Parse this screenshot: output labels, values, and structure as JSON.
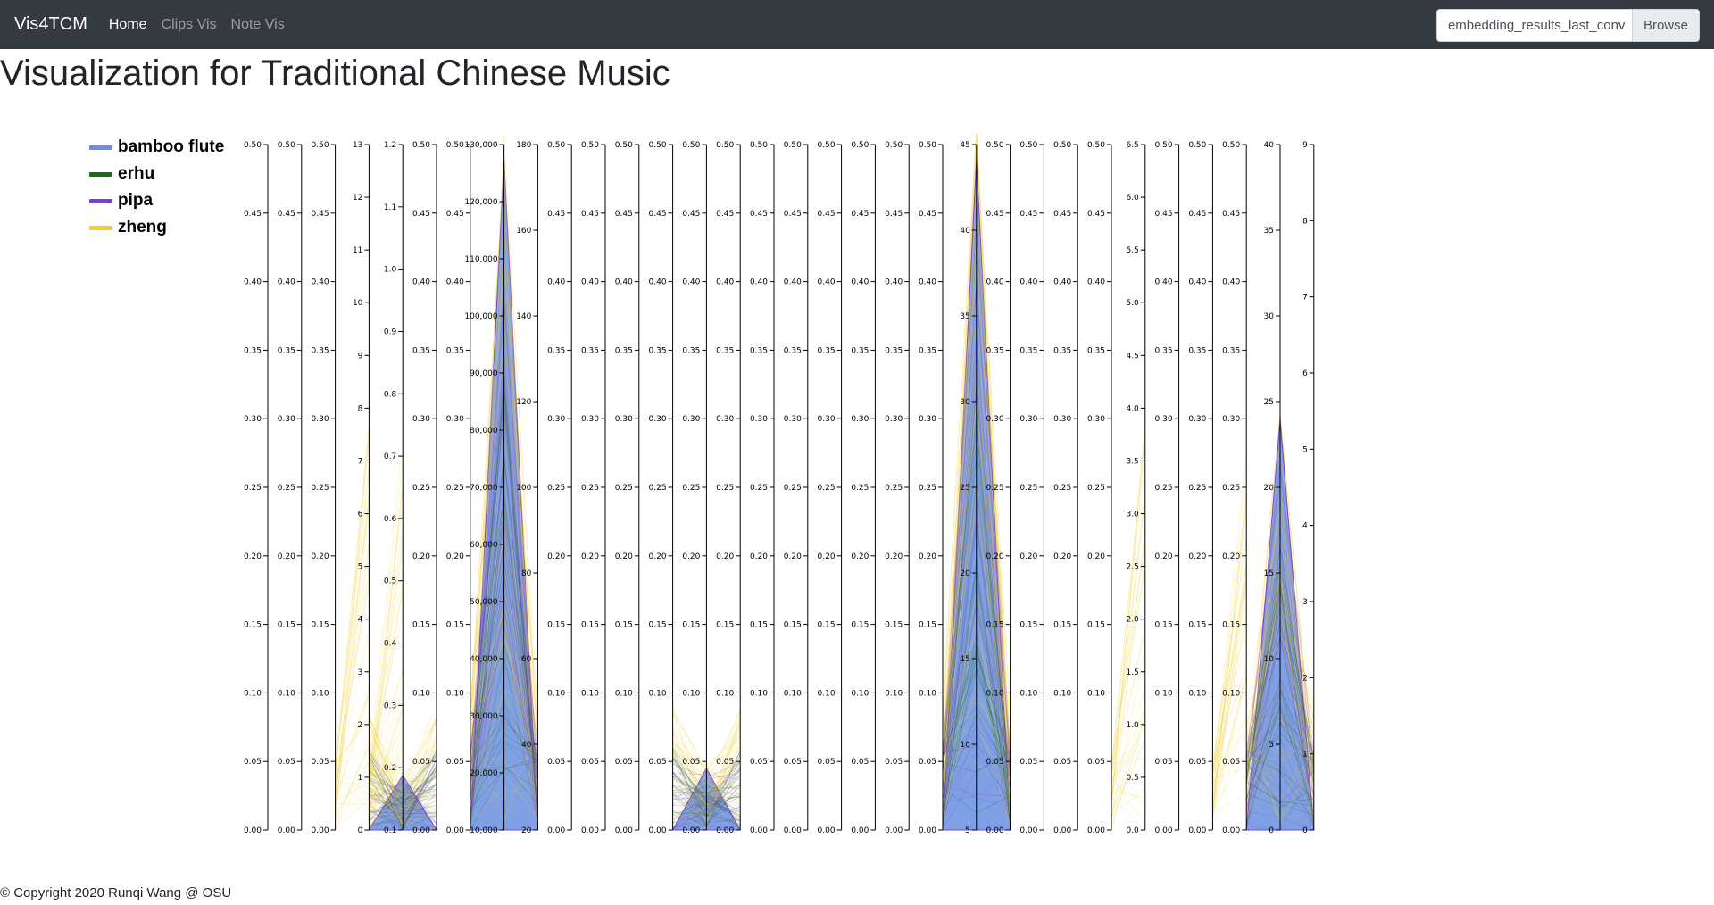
{
  "navbar": {
    "brand": "Vis4TCM",
    "links": [
      {
        "label": "Home",
        "active": true
      },
      {
        "label": "Clips Vis",
        "active": false
      },
      {
        "label": "Note Vis",
        "active": false
      }
    ],
    "file_input": {
      "value": "embedding_results_last_conv",
      "button": "Browse"
    }
  },
  "page_title": "Visualization for Traditional Chinese Music",
  "legend": [
    {
      "label": "bamboo flute",
      "color": "#6a8fe0"
    },
    {
      "label": "erhu",
      "color": "#1a6b1a"
    },
    {
      "label": "pipa",
      "color": "#7b3fd0"
    },
    {
      "label": "zheng",
      "color": "#f2cf2a"
    }
  ],
  "chart_data": {
    "type": "parallel-coordinates",
    "series_names": [
      "bamboo flute",
      "erhu",
      "pipa",
      "zheng"
    ],
    "axes": [
      {
        "ticks": [
          "0.00",
          "0.05",
          "0.10",
          "0.15",
          "0.20",
          "0.25",
          "0.30",
          "0.35",
          "0.40",
          "0.45",
          "0.50"
        ],
        "peak": 0
      },
      {
        "ticks": [
          "0.00",
          "0.05",
          "0.10",
          "0.15",
          "0.20",
          "0.25",
          "0.30",
          "0.35",
          "0.40",
          "0.45",
          "0.50"
        ],
        "peak": 0
      },
      {
        "ticks": [
          "0.00",
          "0.05",
          "0.10",
          "0.15",
          "0.20",
          "0.25",
          "0.30",
          "0.35",
          "0.40",
          "0.45",
          "0.50"
        ],
        "peak": 0
      },
      {
        "ticks": [
          "0",
          "1",
          "2",
          "3",
          "4",
          "5",
          "6",
          "7",
          "8",
          "9",
          "10",
          "11",
          "12",
          "13"
        ],
        "peak": 0
      },
      {
        "ticks": [
          "0.1",
          "0.2",
          "0.3",
          "0.4",
          "0.5",
          "0.6",
          "0.7",
          "0.8",
          "0.9",
          "1.0",
          "1.1",
          "1.2"
        ],
        "peak": 0.08
      },
      {
        "ticks": [
          "0.00",
          "0.05",
          "0.10",
          "0.15",
          "0.20",
          "0.25",
          "0.30",
          "0.35",
          "0.40",
          "0.45",
          "0.50"
        ],
        "peak": 0
      },
      {
        "ticks": [
          "0.00",
          "0.05",
          "0.10",
          "0.15",
          "0.20",
          "0.25",
          "0.30",
          "0.35",
          "0.40",
          "0.45",
          "0.50"
        ],
        "peak": 0
      },
      {
        "ticks": [
          "10,000",
          "20,000",
          "30,000",
          "40,000",
          "50,000",
          "60,000",
          "70,000",
          "80,000",
          "90,000",
          "100,000",
          "110,000",
          "120,000",
          "130,000"
        ],
        "peak": 0.98
      },
      {
        "ticks": [
          "20",
          "40",
          "60",
          "80",
          "100",
          "120",
          "140",
          "160",
          "180"
        ],
        "peak": 0
      },
      {
        "ticks": [
          "0.00",
          "0.05",
          "0.10",
          "0.15",
          "0.20",
          "0.25",
          "0.30",
          "0.35",
          "0.40",
          "0.45",
          "0.50"
        ],
        "peak": 0
      },
      {
        "ticks": [
          "0.00",
          "0.05",
          "0.10",
          "0.15",
          "0.20",
          "0.25",
          "0.30",
          "0.35",
          "0.40",
          "0.45",
          "0.50"
        ],
        "peak": 0
      },
      {
        "ticks": [
          "0.00",
          "0.05",
          "0.10",
          "0.15",
          "0.20",
          "0.25",
          "0.30",
          "0.35",
          "0.40",
          "0.45",
          "0.50"
        ],
        "peak": 0
      },
      {
        "ticks": [
          "0.00",
          "0.05",
          "0.10",
          "0.15",
          "0.20",
          "0.25",
          "0.30",
          "0.35",
          "0.40",
          "0.45",
          "0.50"
        ],
        "peak": 0
      },
      {
        "ticks": [
          "0.00",
          "0.05",
          "0.10",
          "0.15",
          "0.20",
          "0.25",
          "0.30",
          "0.35",
          "0.40",
          "0.45",
          "0.50"
        ],
        "peak": 0.09
      },
      {
        "ticks": [
          "0.00",
          "0.05",
          "0.10",
          "0.15",
          "0.20",
          "0.25",
          "0.30",
          "0.35",
          "0.40",
          "0.45",
          "0.50"
        ],
        "peak": 0
      },
      {
        "ticks": [
          "0.00",
          "0.05",
          "0.10",
          "0.15",
          "0.20",
          "0.25",
          "0.30",
          "0.35",
          "0.40",
          "0.45",
          "0.50"
        ],
        "peak": 0
      },
      {
        "ticks": [
          "0.00",
          "0.05",
          "0.10",
          "0.15",
          "0.20",
          "0.25",
          "0.30",
          "0.35",
          "0.40",
          "0.45",
          "0.50"
        ],
        "peak": 0
      },
      {
        "ticks": [
          "0.00",
          "0.05",
          "0.10",
          "0.15",
          "0.20",
          "0.25",
          "0.30",
          "0.35",
          "0.40",
          "0.45",
          "0.50"
        ],
        "peak": 0
      },
      {
        "ticks": [
          "0.00",
          "0.05",
          "0.10",
          "0.15",
          "0.20",
          "0.25",
          "0.30",
          "0.35",
          "0.40",
          "0.45",
          "0.50"
        ],
        "peak": 0
      },
      {
        "ticks": [
          "0.00",
          "0.05",
          "0.10",
          "0.15",
          "0.20",
          "0.25",
          "0.30",
          "0.35",
          "0.40",
          "0.45",
          "0.50"
        ],
        "peak": 0
      },
      {
        "ticks": [
          "0.00",
          "0.05",
          "0.10",
          "0.15",
          "0.20",
          "0.25",
          "0.30",
          "0.35",
          "0.40",
          "0.45",
          "0.50"
        ],
        "peak": 0
      },
      {
        "ticks": [
          "5",
          "10",
          "15",
          "20",
          "25",
          "30",
          "35",
          "40",
          "45"
        ],
        "peak": 0.98
      },
      {
        "ticks": [
          "0.00",
          "0.05",
          "0.10",
          "0.15",
          "0.20",
          "0.25",
          "0.30",
          "0.35",
          "0.40",
          "0.45",
          "0.50"
        ],
        "peak": 0
      },
      {
        "ticks": [
          "0.00",
          "0.05",
          "0.10",
          "0.15",
          "0.20",
          "0.25",
          "0.30",
          "0.35",
          "0.40",
          "0.45",
          "0.50"
        ],
        "peak": 0
      },
      {
        "ticks": [
          "0.00",
          "0.05",
          "0.10",
          "0.15",
          "0.20",
          "0.25",
          "0.30",
          "0.35",
          "0.40",
          "0.45",
          "0.50"
        ],
        "peak": 0
      },
      {
        "ticks": [
          "0.00",
          "0.05",
          "0.10",
          "0.15",
          "0.20",
          "0.25",
          "0.30",
          "0.35",
          "0.40",
          "0.45",
          "0.50"
        ],
        "peak": 0
      },
      {
        "ticks": [
          "0.0",
          "0.5",
          "1.0",
          "1.5",
          "2.0",
          "2.5",
          "3.0",
          "3.5",
          "4.0",
          "4.5",
          "5.0",
          "5.5",
          "6.0",
          "6.5"
        ],
        "peak": 0
      },
      {
        "ticks": [
          "0.00",
          "0.05",
          "0.10",
          "0.15",
          "0.20",
          "0.25",
          "0.30",
          "0.35",
          "0.40",
          "0.45",
          "0.50"
        ],
        "peak": 0
      },
      {
        "ticks": [
          "0.00",
          "0.05",
          "0.10",
          "0.15",
          "0.20",
          "0.25",
          "0.30",
          "0.35",
          "0.40",
          "0.45",
          "0.50"
        ],
        "peak": 0
      },
      {
        "ticks": [
          "0.00",
          "0.05",
          "0.10",
          "0.15",
          "0.20",
          "0.25",
          "0.30",
          "0.35",
          "0.40",
          "0.45",
          "0.50"
        ],
        "peak": 0
      },
      {
        "ticks": [
          "0",
          "5",
          "10",
          "15",
          "20",
          "25",
          "30",
          "35",
          "40"
        ],
        "peak": 0.6
      },
      {
        "ticks": [
          "0",
          "1",
          "2",
          "3",
          "4",
          "5",
          "6",
          "7",
          "8",
          "9"
        ],
        "peak": 0
      }
    ]
  },
  "footer": "© Copyright 2020 Runqi Wang @ OSU"
}
